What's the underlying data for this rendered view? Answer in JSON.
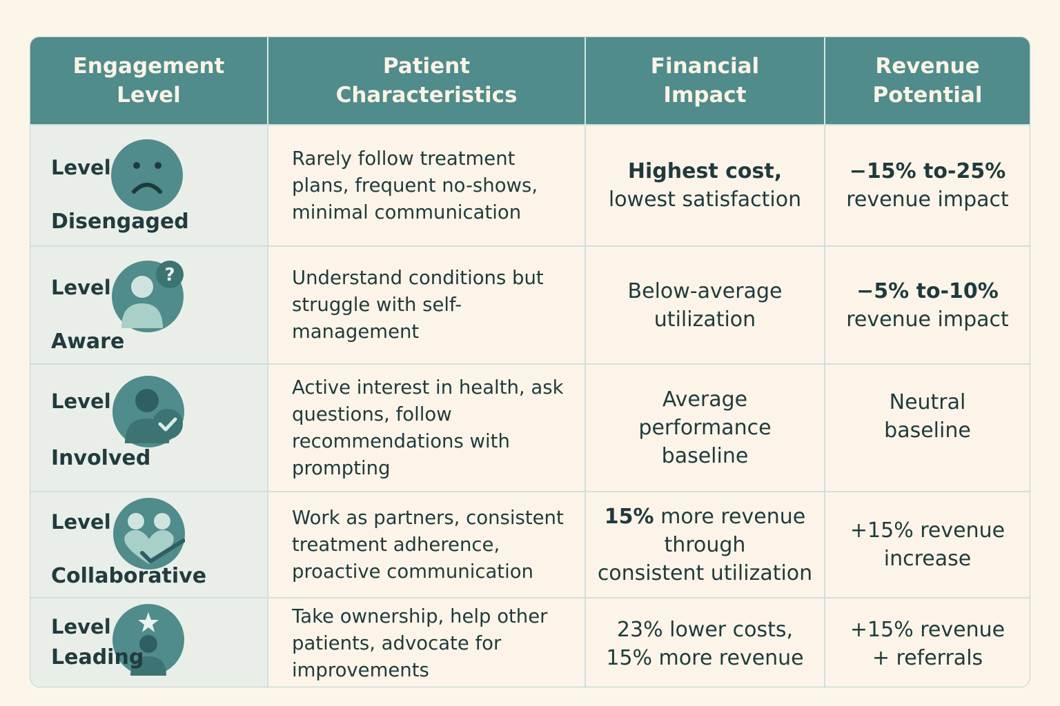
{
  "headers": {
    "engagement": "Engagement Level",
    "characteristics": "Patient Characteristics",
    "financial": "Financial Impact",
    "revenue": "Revenue Potential"
  },
  "colors": {
    "header_bg": "#4f8c8b",
    "icon_bg": "#4f8c8b",
    "page_bg": "#fcf5ea"
  },
  "rows": [
    {
      "level_word": "Level",
      "level_name": "Disengaged",
      "icon": "sad-face-icon",
      "characteristics": "Rarely follow treatment plans, frequent no-shows, minimal communication",
      "financial_line1": "Highest cost,",
      "financial_line2": "lowest satisfaction",
      "revenue_line1": "−15% to-25%",
      "revenue_line2": "revenue impact"
    },
    {
      "level_word": "Level",
      "level_name": "Aware",
      "icon": "person-question-icon",
      "characteristics": "Understand conditions but struggle with self-management",
      "financial_line1": "Below-average",
      "financial_line2": "utilization",
      "revenue_line1": "−5% to-10%",
      "revenue_line2": "revenue impact"
    },
    {
      "level_word": "Level",
      "level_name": "Involved",
      "icon": "person-check-icon",
      "characteristics": "Active interest in health, ask questions, follow recommendations with prompting",
      "financial_line1": "Average",
      "financial_line2": "performance",
      "financial_line3": "baseline",
      "revenue_line1": "Neutral",
      "revenue_line2": "baseline"
    },
    {
      "level_word": "Level",
      "level_name": "Collaborative",
      "icon": "two-people-heart-icon",
      "characteristics": "Work as partners, consistent treatment adherence, proactive communication",
      "financial_bold": "15%",
      "financial_line1_rest": " more revenue",
      "financial_line2": "through",
      "financial_line3": "consistent utilization",
      "revenue_line1": "+15% revenue",
      "revenue_line2": "increase"
    },
    {
      "level_word": "Level",
      "level_name": "Leading",
      "icon": "person-star-icon",
      "characteristics": "Take ownership, help other patients, advocate for improvements",
      "financial_line1": "23% lower costs,",
      "financial_line2": "15% more revenue",
      "revenue_line1": "+15% revenue",
      "revenue_line2": "+ referrals"
    }
  ]
}
